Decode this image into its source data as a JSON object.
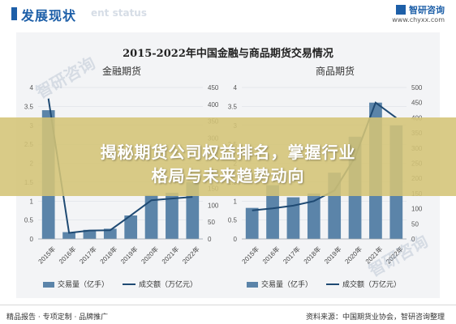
{
  "header": {
    "title": "发展现状",
    "subtitle": "ent status",
    "brand_name": "智研咨询",
    "brand_url": "www.chyxx.com"
  },
  "panel_title": "2015-2022年中国金融与商品期货交易情况",
  "overlay": {
    "line1": "揭秘期货公司权益排名，掌握行业",
    "line2": "格局与未来趋势动向"
  },
  "watermark": "智研咨询",
  "footer": {
    "left": "精品报告 · 专项定制 · 品牌推广",
    "right": "资料来源：中国期货业协会，智研咨询整理"
  },
  "colors": {
    "bar": "#5b84a9",
    "line": "#1f4a73",
    "accent": "#1d5fa8"
  },
  "chart_data": [
    {
      "type": "bar",
      "title": "金融期货",
      "categories": [
        "2015年",
        "2016年",
        "2017年",
        "2018年",
        "2019年",
        "2020年",
        "2021年",
        "2022年"
      ],
      "ylim": [
        0,
        4
      ],
      "yticks": [
        0,
        0.5,
        1,
        1.5,
        2,
        2.5,
        3,
        3.5,
        4
      ],
      "y2lim": [
        0,
        450
      ],
      "y2ticks": [
        0,
        50,
        100,
        150,
        200,
        250,
        300,
        350,
        400,
        450
      ],
      "series": [
        {
          "name": "交易量（亿手）",
          "axis": "left",
          "kind": "bar",
          "values": [
            3.4,
            0.18,
            0.24,
            0.27,
            0.62,
            1.16,
            1.22,
            1.5
          ]
        },
        {
          "name": "成交额（万亿元）",
          "axis": "right",
          "kind": "line",
          "values": [
            417,
            18,
            25,
            26,
            70,
            115,
            120,
            125
          ]
        }
      ]
    },
    {
      "type": "bar",
      "title": "商品期货",
      "categories": [
        "2015年",
        "2016年",
        "2017年",
        "2018年",
        "2019年",
        "2020年",
        "2021年",
        "2022年"
      ],
      "ylim": [
        0,
        4
      ],
      "yticks": [
        0,
        0.5,
        1,
        1.5,
        2,
        2.5,
        3,
        3.5,
        4
      ],
      "y2lim": [
        0,
        500
      ],
      "y2ticks": [
        0,
        50,
        100,
        150,
        200,
        250,
        300,
        350,
        400,
        450,
        500
      ],
      "series": [
        {
          "name": "交易量（亿手）",
          "axis": "left",
          "kind": "bar",
          "values": [
            0.82,
            1.42,
            1.1,
            1.2,
            1.75,
            2.7,
            3.6,
            3.0
          ]
        },
        {
          "name": "成交额（万亿元）",
          "axis": "right",
          "kind": "line",
          "values": [
            94,
            101,
            110,
            125,
            160,
            270,
            450,
            400
          ]
        }
      ]
    }
  ]
}
